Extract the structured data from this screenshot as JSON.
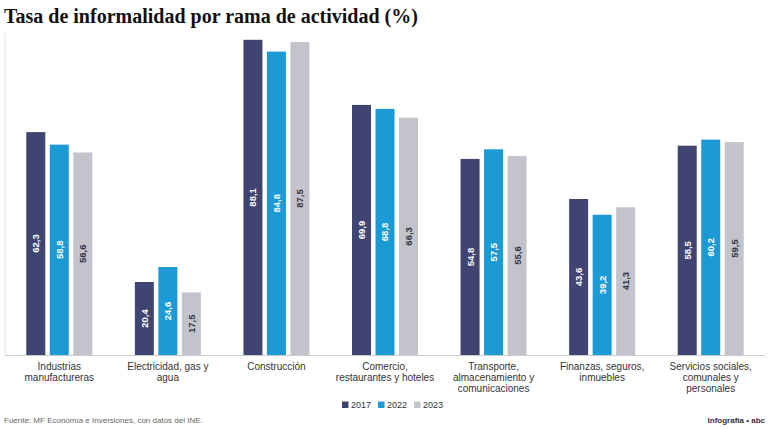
{
  "chart_data": {
    "type": "bar",
    "title": "Tasa de informalidad por rama de actividad (%)",
    "categories": [
      "Industrias manufactureras",
      "Electricidad, gas y agua",
      "Construcción",
      "Comercio, restaurantes y hoteles",
      "Transporte, almacenamiento y comunicaciones",
      "Finanzas, seguros, inmuebles",
      "Servicios sociales, comunales y personales"
    ],
    "series": [
      {
        "name": "2017",
        "color": "#3f4470",
        "values": [
          62.3,
          20.4,
          88.1,
          69.9,
          54.8,
          43.6,
          58.5
        ],
        "value_labels": [
          "62,3",
          "20,4",
          "88,1",
          "69,9",
          "54,8",
          "43,6",
          "58,5"
        ]
      },
      {
        "name": "2022",
        "color": "#1c9ad6",
        "values": [
          58.8,
          24.6,
          84.8,
          68.8,
          57.5,
          39.2,
          60.2
        ],
        "value_labels": [
          "58,8",
          "24,6",
          "84,8",
          "68,8",
          "57,5",
          "39,2",
          "60,2"
        ]
      },
      {
        "name": "2023",
        "color": "#c3c3cb",
        "values": [
          56.6,
          17.5,
          87.5,
          66.3,
          55.6,
          41.3,
          59.5
        ],
        "value_labels": [
          "56,6",
          "17,5",
          "87,5",
          "66,3",
          "55,6",
          "41,3",
          "59,5"
        ]
      }
    ],
    "ylim": [
      0,
      90
    ],
    "grid": false,
    "tick_labels": "x",
    "data_labels": true,
    "legend": "bottom",
    "source": "Fuente: MF Economía e Inversiones, con datos del INE.",
    "credit": "Infografía • abc"
  }
}
